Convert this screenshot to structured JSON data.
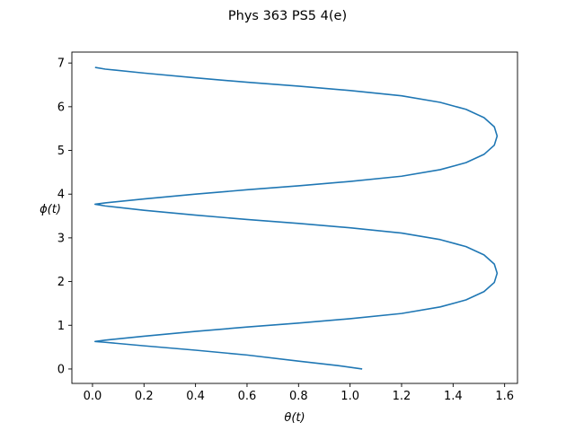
{
  "chart_data": {
    "type": "line",
    "title": "Phys 363 PS5 4(e)",
    "xlabel": "θ(t)",
    "ylabel": "ϕ(t)",
    "xlim": [
      -0.08,
      1.65
    ],
    "ylim": [
      -0.33,
      7.25
    ],
    "xticks": [
      0.0,
      0.2,
      0.4,
      0.6,
      0.8,
      1.0,
      1.2,
      1.4,
      1.6
    ],
    "xtick_labels": [
      "0.0",
      "0.2",
      "0.4",
      "0.6",
      "0.8",
      "1.0",
      "1.2",
      "1.4",
      "1.6"
    ],
    "yticks": [
      0,
      1,
      2,
      3,
      4,
      5,
      6,
      7
    ],
    "ytick_labels": [
      "0",
      "1",
      "2",
      "3",
      "4",
      "5",
      "6",
      "7"
    ],
    "grid": false,
    "line_color": "#1f77b4",
    "series": [
      {
        "x": [
          1.047,
          0.95,
          0.8,
          0.6,
          0.4,
          0.2,
          0.05,
          0.01,
          0.05,
          0.2,
          0.4,
          0.6,
          0.8,
          1.0,
          1.2,
          1.35,
          1.45,
          1.52,
          1.56,
          1.571,
          1.56,
          1.52,
          1.45,
          1.35,
          1.2,
          1.0,
          0.8,
          0.6,
          0.4,
          0.2,
          0.05,
          0.01,
          0.05,
          0.2,
          0.4,
          0.6,
          0.8,
          1.0,
          1.2,
          1.35,
          1.45,
          1.52,
          1.56,
          1.571,
          1.56,
          1.52,
          1.45,
          1.35,
          1.2,
          1.0,
          0.8,
          0.6,
          0.4,
          0.2,
          0.05,
          0.01
        ],
        "y": [
          0.0,
          0.08,
          0.18,
          0.32,
          0.43,
          0.53,
          0.61,
          0.63,
          0.66,
          0.75,
          0.86,
          0.96,
          1.05,
          1.15,
          1.27,
          1.42,
          1.58,
          1.77,
          1.98,
          2.19,
          2.4,
          2.61,
          2.8,
          2.96,
          3.11,
          3.23,
          3.33,
          3.42,
          3.52,
          3.63,
          3.73,
          3.77,
          3.8,
          3.89,
          4.0,
          4.1,
          4.19,
          4.29,
          4.41,
          4.56,
          4.72,
          4.91,
          5.12,
          5.33,
          5.54,
          5.75,
          5.94,
          6.1,
          6.25,
          6.37,
          6.47,
          6.56,
          6.66,
          6.77,
          6.86,
          6.9
        ]
      }
    ]
  }
}
